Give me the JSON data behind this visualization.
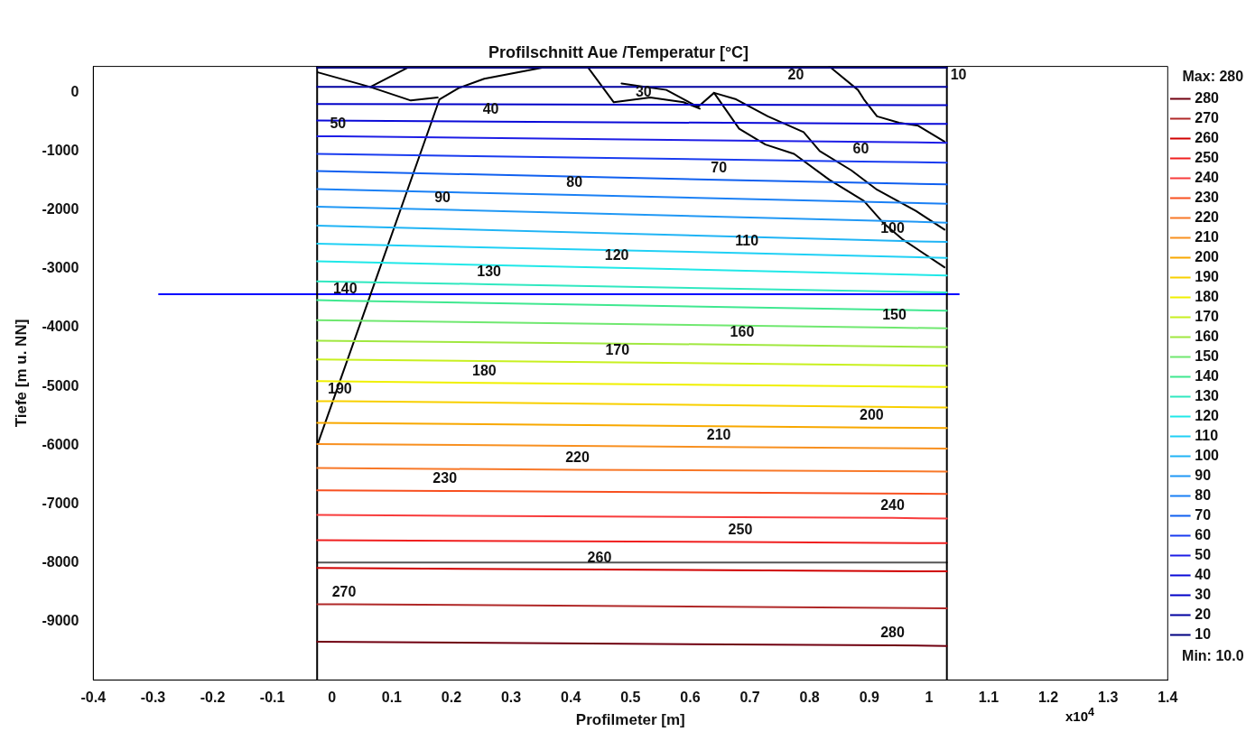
{
  "chart_data": {
    "type": "line",
    "title": "Profilschnitt Aue /Temperatur [°C]",
    "xlabel": "Profilmeter [m]",
    "ylabel": "Tiefe [m u. NN]",
    "xlim": [
      -0.4,
      1.4
    ],
    "xticks": [
      -0.4,
      -0.3,
      -0.2,
      -0.1,
      0,
      0.1,
      0.2,
      0.3,
      0.4,
      0.5,
      0.6,
      0.7,
      0.8,
      0.9,
      1,
      1.1,
      1.2,
      1.3,
      1.4
    ],
    "ylim": [
      -10000,
      450
    ],
    "yticks": [
      0,
      -1000,
      -2000,
      -3000,
      -4000,
      -5000,
      -6000,
      -7000,
      -8000,
      -9000
    ],
    "grid": false,
    "legend": "right",
    "series": [
      {
        "name": "10",
        "color": "#000080",
        "x": [
          -0.025,
          1.03
        ],
        "values": [
          430,
          430
        ]
      },
      {
        "name": "20",
        "color": "#0000a0",
        "x": [
          -0.025,
          0.777,
          1.03
        ],
        "values": [
          100,
          100,
          100
        ]
      },
      {
        "name": "30",
        "color": "#0000c8",
        "x": [
          -0.025,
          0.522,
          1.03
        ],
        "values": [
          -190,
          -200,
          -210
        ]
      },
      {
        "name": "40",
        "color": "#0a0ad8",
        "x": [
          -0.025,
          0.266,
          1.03
        ],
        "values": [
          -470,
          -490,
          -530
        ]
      },
      {
        "name": "50",
        "color": "#1e1ee6",
        "x": [
          -0.025,
          0.01,
          1.03
        ],
        "values": [
          -740,
          -740,
          -850
        ]
      },
      {
        "name": "60",
        "color": "#1a3cf0",
        "x": [
          -0.025,
          0.886,
          1.03
        ],
        "values": [
          -1040,
          -1170,
          -1190
        ]
      },
      {
        "name": "70",
        "color": "#1060f0",
        "x": [
          -0.025,
          0.648,
          1.03
        ],
        "values": [
          -1330,
          -1480,
          -1560
        ]
      },
      {
        "name": "80",
        "color": "#1a80f5",
        "x": [
          -0.025,
          0.406,
          1.03
        ],
        "values": [
          -1640,
          -1740,
          -1890
        ]
      },
      {
        "name": "90",
        "color": "#2098f5",
        "x": [
          -0.025,
          0.185,
          1.03
        ],
        "values": [
          -1940,
          -1990,
          -2210
        ]
      },
      {
        "name": "100",
        "color": "#20b4f5",
        "x": [
          -0.025,
          0.939,
          1.03
        ],
        "values": [
          -2260,
          -2520,
          -2540
        ]
      },
      {
        "name": "110",
        "color": "#20d0f5",
        "x": [
          -0.025,
          0.695,
          1.03
        ],
        "values": [
          -2570,
          -2730,
          -2810
        ]
      },
      {
        "name": "120",
        "color": "#20e8e8",
        "x": [
          -0.025,
          0.477,
          1.03
        ],
        "values": [
          -2870,
          -2980,
          -3110
        ]
      },
      {
        "name": "130",
        "color": "#30e8c0",
        "x": [
          -0.025,
          0.263,
          1.03
        ],
        "values": [
          -3210,
          -3260,
          -3400
        ]
      },
      {
        "name": "140",
        "color": "#40e890",
        "x": [
          -0.025,
          0.022,
          1.03
        ],
        "values": [
          -3530,
          -3540,
          -3710
        ]
      },
      {
        "name": "150",
        "color": "#70e870",
        "x": [
          -0.025,
          0.942,
          1.03
        ],
        "values": [
          -3870,
          -4000,
          -4010
        ]
      },
      {
        "name": "160",
        "color": "#a0e840",
        "x": [
          -0.025,
          0.687,
          1.03
        ],
        "values": [
          -4220,
          -4290,
          -4330
        ]
      },
      {
        "name": "170",
        "color": "#c8f020",
        "x": [
          -0.025,
          0.478,
          1.03
        ],
        "values": [
          -4540,
          -4590,
          -4650
        ]
      },
      {
        "name": "180",
        "color": "#f0f000",
        "x": [
          -0.025,
          0.255,
          1.03
        ],
        "values": [
          -4910,
          -4940,
          -5010
        ]
      },
      {
        "name": "190",
        "color": "#f8d000",
        "x": [
          -0.025,
          0.013,
          1.03
        ],
        "values": [
          -5250,
          -5250,
          -5360
        ]
      },
      {
        "name": "200",
        "color": "#f8a800",
        "x": [
          -0.025,
          0.904,
          1.03
        ],
        "values": [
          -5620,
          -5700,
          -5710
        ]
      },
      {
        "name": "210",
        "color": "#f89020",
        "x": [
          -0.025,
          0.648,
          1.03
        ],
        "values": [
          -5980,
          -6030,
          -6060
        ]
      },
      {
        "name": "220",
        "color": "#f87828",
        "x": [
          -0.025,
          0.411,
          1.03
        ],
        "values": [
          -6390,
          -6420,
          -6450
        ]
      },
      {
        "name": "230",
        "color": "#f85020",
        "x": [
          -0.025,
          0.189,
          1.03
        ],
        "values": [
          -6770,
          -6780,
          -6830
        ]
      },
      {
        "name": "240",
        "color": "#f83c3c",
        "x": [
          -0.025,
          0.939,
          1.03
        ],
        "values": [
          -7190,
          -7240,
          -7250
        ]
      },
      {
        "name": "250",
        "color": "#f02020",
        "x": [
          -0.025,
          0.684,
          1.03
        ],
        "values": [
          -7620,
          -7650,
          -7670
        ]
      },
      {
        "name": "260",
        "color": "#d00000",
        "x": [
          -0.025,
          0.448,
          1.03
        ],
        "values": [
          -8090,
          -8120,
          -8150
        ]
      },
      {
        "name": "270",
        "color": "#b02828",
        "x": [
          -0.025,
          0.02,
          1.03
        ],
        "values": [
          -8710,
          -8710,
          -8780
        ]
      },
      {
        "name": "280",
        "color": "#700010",
        "x": [
          -0.025,
          0.939,
          1.03
        ],
        "values": [
          -9350,
          -9410,
          -9420
        ]
      },
      {
        "color": "#000000",
        "x": [
          -0.025,
          -0.025
        ],
        "values": [
          450,
          -10000
        ]
      },
      {
        "color": "#000000",
        "x": [
          1.03,
          1.03
        ],
        "values": [
          450,
          -10000
        ]
      },
      {
        "color": "#555555",
        "x": [
          -0.025,
          1.03
        ],
        "values": [
          -8000,
          -8000
        ]
      },
      {
        "color": "#000000",
        "x": [
          -0.024,
          0.18,
          0.212,
          0.255,
          0.352
        ],
        "values": [
          -5980,
          -110,
          80,
          240,
          430
        ]
      },
      {
        "color": "#000000",
        "x": [
          -0.024,
          0.064,
          0.132,
          0.177
        ],
        "values": [
          350,
          100,
          -130,
          -80
        ]
      },
      {
        "color": "#000000",
        "x": [
          0.064,
          0.127
        ],
        "values": [
          100,
          430
        ]
      },
      {
        "color": "#000000",
        "x": [
          0.429,
          0.472,
          0.533,
          0.589,
          0.616
        ],
        "values": [
          430,
          -160,
          -80,
          -160,
          -270
        ]
      },
      {
        "color": "#000000",
        "x": [
          0.485,
          0.56,
          0.613,
          0.64,
          0.677,
          0.73,
          0.79,
          0.817,
          0.87,
          0.913,
          0.978,
          1.026
        ],
        "values": [
          160,
          50,
          -240,
          0,
          -110,
          -400,
          -670,
          -990,
          -1320,
          -1650,
          -2010,
          -2330
        ]
      },
      {
        "color": "#000000",
        "x": [
          0.64,
          0.682,
          0.726,
          0.774,
          0.833,
          0.891,
          0.923,
          0.955,
          1.026
        ],
        "values": [
          0,
          -610,
          -880,
          -1040,
          -1480,
          -1840,
          -2210,
          -2490,
          -2970
        ]
      },
      {
        "color": "#000000",
        "x": [
          0.833,
          0.881,
          0.891,
          0.913,
          0.95,
          0.982,
          1.026
        ],
        "values": [
          450,
          50,
          -110,
          -400,
          -510,
          -560,
          -830
        ]
      },
      {
        "color": "#0000ff",
        "x": [
          -0.29,
          1.05
        ],
        "values": [
          -3430,
          -3430
        ]
      }
    ],
    "annotations": [
      "x10$^{4}$",
      "Max: 280",
      "Min: 10.0"
    ]
  }
}
